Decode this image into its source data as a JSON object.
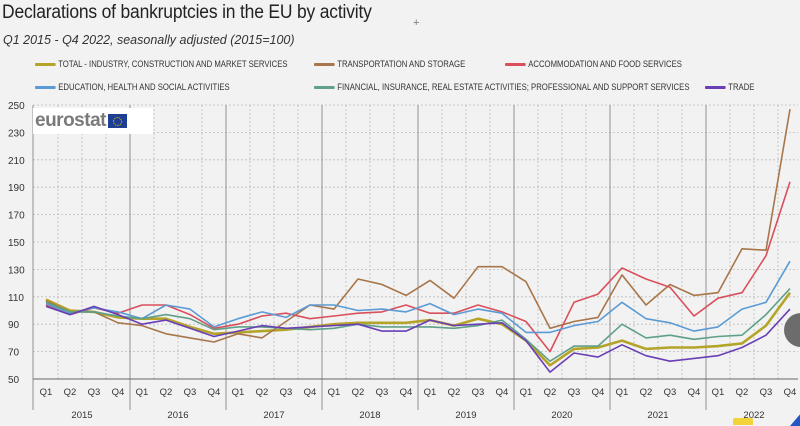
{
  "chart_data": {
    "type": "line",
    "title": "Declarations of bankruptcies in the EU by activity",
    "subtitle": "Q1 2015 - Q4 2022, seasonally adjusted  (2015=100)",
    "xlabel": "",
    "ylabel": "",
    "ylim": [
      50,
      250
    ],
    "yticks": [
      50,
      70,
      90,
      110,
      130,
      150,
      170,
      190,
      210,
      230,
      250
    ],
    "grid": true,
    "legend_position": "top",
    "quarters": [
      "Q1",
      "Q2",
      "Q3",
      "Q4"
    ],
    "years": [
      "2015",
      "2016",
      "2017",
      "2018",
      "2019",
      "2020",
      "2021",
      "2022"
    ],
    "series": [
      {
        "name": "TOTAL - INDUSTRY, CONSTRUCTION AND MARKET SERVICES",
        "color": "#b5a42a",
        "values": [
          108,
          100,
          99,
          95,
          94,
          94,
          88,
          83,
          84,
          85,
          86,
          88,
          90,
          91,
          91,
          91,
          93,
          89,
          94,
          90,
          78,
          60,
          72,
          73,
          78,
          72,
          73,
          73,
          74,
          76,
          89,
          113
        ]
      },
      {
        "name": "TRANSPORTATION AND STORAGE",
        "color": "#a8764a",
        "values": [
          107,
          99,
          99,
          91,
          89,
          83,
          80,
          77,
          83,
          80,
          92,
          104,
          101,
          123,
          119,
          111,
          122,
          109,
          132,
          132,
          121,
          87,
          92,
          95,
          126,
          104,
          119,
          111,
          113,
          145,
          144,
          247
        ]
      },
      {
        "name": "ACCOMMODATION AND FOOD SERVICES",
        "color": "#d9505c",
        "values": [
          104,
          97,
          102,
          98,
          104,
          104,
          97,
          87,
          90,
          96,
          98,
          94,
          96,
          98,
          99,
          104,
          98,
          98,
          104,
          99,
          92,
          70,
          106,
          112,
          131,
          123,
          117,
          96,
          109,
          113,
          140,
          194
        ]
      },
      {
        "name": "EDUCATION,  HEALTH AND SOCIAL ACTIVITIES",
        "color": "#5b9bd5",
        "values": [
          105,
          98,
          102,
          99,
          94,
          104,
          101,
          88,
          94,
          99,
          95,
          104,
          104,
          100,
          101,
          99,
          105,
          97,
          101,
          98,
          84,
          84,
          89,
          92,
          106,
          94,
          91,
          85,
          88,
          101,
          106,
          136
        ]
      },
      {
        "name": "FINANCIAL, INSURANCE, REAL ESTATE ACTIVITIES; PROFESSIONAL AND SUPPORT SERVICES",
        "color": "#5fa089",
        "values": [
          106,
          99,
          99,
          96,
          94,
          97,
          94,
          86,
          88,
          88,
          87,
          86,
          87,
          90,
          88,
          88,
          88,
          87,
          89,
          93,
          79,
          63,
          74,
          74,
          90,
          80,
          82,
          79,
          81,
          82,
          97,
          116
        ]
      },
      {
        "name": "TRADE",
        "color": "#6a3fb5",
        "values": [
          103,
          97,
          103,
          97,
          90,
          93,
          87,
          81,
          85,
          89,
          87,
          88,
          89,
          90,
          85,
          85,
          93,
          89,
          90,
          91,
          78,
          55,
          69,
          66,
          75,
          67,
          63,
          65,
          67,
          73,
          82,
          101
        ]
      }
    ]
  },
  "page": {
    "title": "Declarations of bankruptcies in the EU by activity",
    "subtitle": "Q1 2015 - Q4 2022, seasonally adjusted  (2015=100)",
    "plus_marker": "+",
    "logo_text": "eurostat"
  }
}
